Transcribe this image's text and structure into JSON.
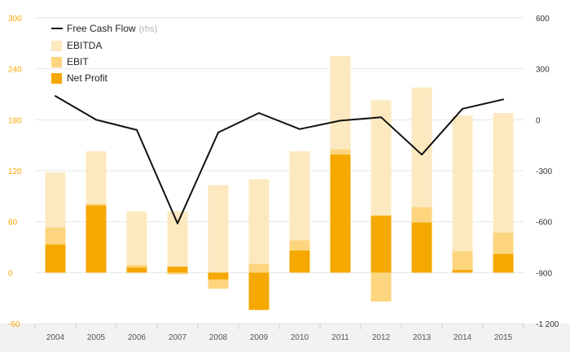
{
  "chart_data": {
    "type": "bar",
    "categories": [
      "2004",
      "2005",
      "2006",
      "2007",
      "2008",
      "2009",
      "2010",
      "2011",
      "2012",
      "2013",
      "2014",
      "2015"
    ],
    "series": [
      {
        "name": "EBITDA",
        "kind": "bar",
        "color": "#fde9bf",
        "values": [
          118,
          143,
          72,
          72,
          103,
          110,
          143,
          255,
          203,
          218,
          185,
          188
        ]
      },
      {
        "name": "EBIT",
        "kind": "bar",
        "color": "#fdd57e",
        "values": [
          53,
          81,
          9,
          -2,
          -19,
          10,
          38,
          145,
          -34,
          77,
          25,
          47
        ]
      },
      {
        "name": "Net Profit",
        "kind": "bar",
        "color": "#f5a800",
        "values": [
          33,
          79,
          6,
          7,
          -8,
          -44,
          26,
          139,
          67,
          59,
          3,
          22
        ]
      },
      {
        "name": "Free Cash Flow",
        "note": "(rhs)",
        "kind": "line",
        "axis": "right",
        "color": "#111111",
        "values": [
          140,
          0,
          -60,
          -610,
          -75,
          40,
          -55,
          -5,
          15,
          -205,
          65,
          120
        ]
      }
    ],
    "y_left": {
      "lim": [
        -60,
        300
      ],
      "ticks": [
        "300",
        "240",
        "180",
        "120",
        "60",
        "0",
        "-60"
      ],
      "tick_values": [
        300,
        240,
        180,
        120,
        60,
        0,
        -60
      ],
      "tick_color": "#f5a800"
    },
    "y_right": {
      "lim": [
        -1200,
        600
      ],
      "ticks": [
        "600",
        "300",
        "0",
        "-300",
        "-600",
        "-900",
        "-1 200"
      ],
      "tick_values": [
        600,
        300,
        0,
        -300,
        -600,
        -900,
        -1200
      ]
    },
    "grid": true,
    "legend_position": "top-left",
    "title": "",
    "xlabel": "",
    "ylabel": ""
  }
}
